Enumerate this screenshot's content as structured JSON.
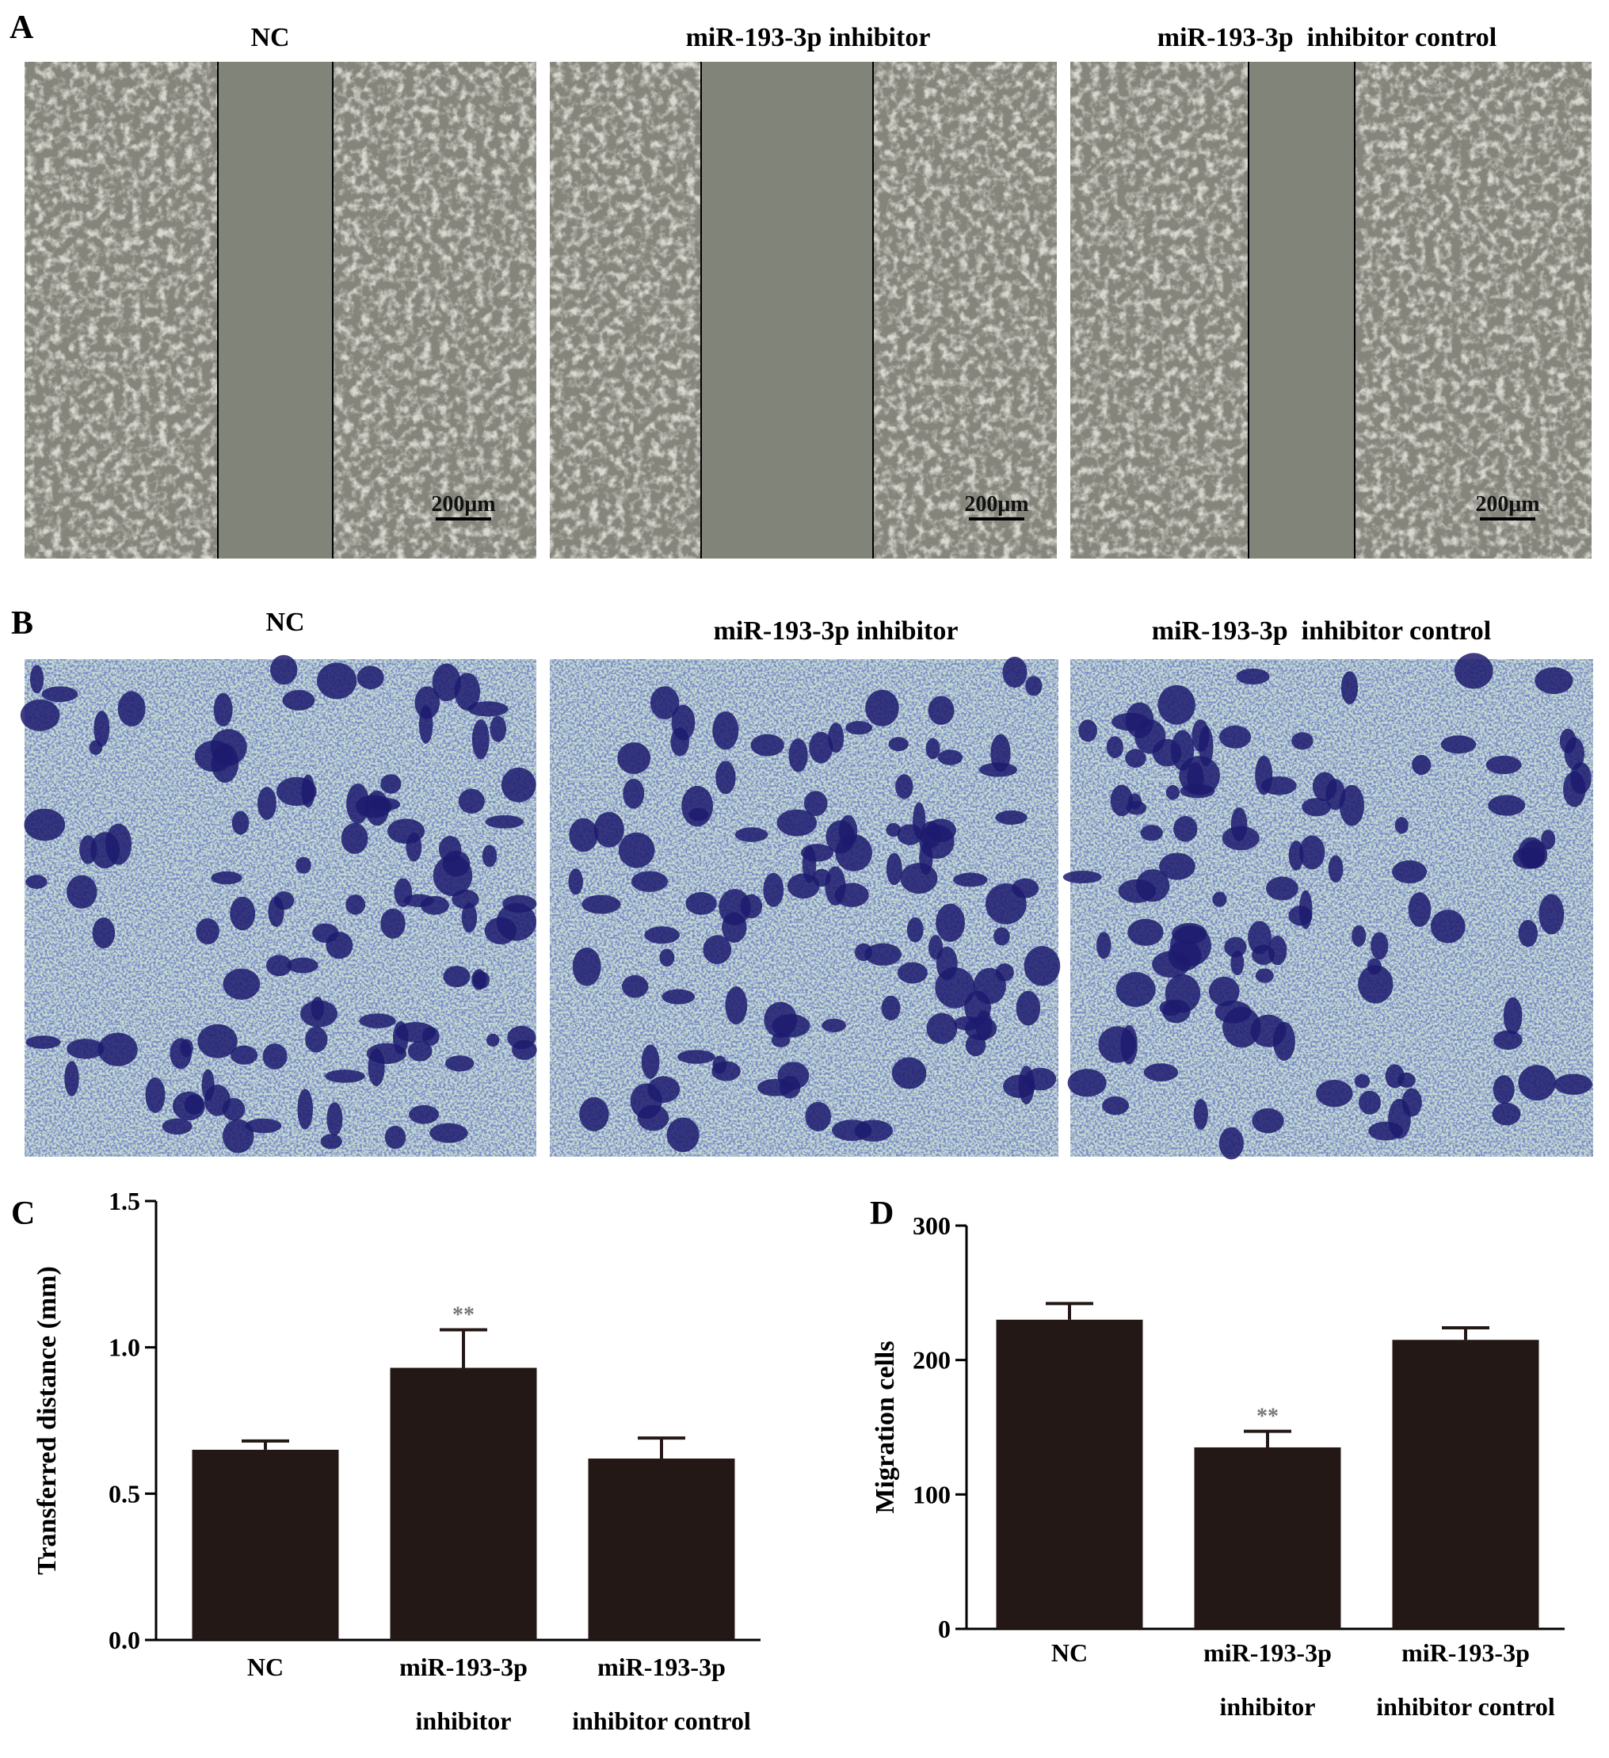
{
  "panels": [
    {
      "label": "A",
      "images": [
        {
          "title": "NC",
          "scale_bar": "200μm"
        },
        {
          "title": "miR-193-3p inhibitor",
          "scale_bar": "200μm"
        },
        {
          "title": "miR-193-3p  inhibitor control",
          "scale_bar": "200μm"
        }
      ]
    },
    {
      "label": "B",
      "images": [
        {
          "title": "NC"
        },
        {
          "title": "miR-193-3p inhibitor"
        },
        {
          "title": "miR-193-3p  inhibitor control"
        }
      ]
    }
  ],
  "chart_data": [
    {
      "type": "bar",
      "label": "C",
      "ylabel": "Transferred distance (mm)",
      "categories": [
        [
          "NC"
        ],
        [
          "miR-193-3p",
          "inhibitor"
        ],
        [
          "miR-193-3p",
          "inhibitor control"
        ]
      ],
      "values": [
        0.65,
        0.93,
        0.62
      ],
      "errors": [
        0.03,
        0.13,
        0.07
      ],
      "annotations": [
        null,
        "**",
        null
      ],
      "color": "#231816",
      "ylim": [
        0,
        1.5
      ],
      "yticks": [
        {
          "value": 0,
          "label": "0.0"
        },
        0.5,
        {
          "value": 1,
          "label": "1.0"
        },
        1.5
      ]
    },
    {
      "type": "bar",
      "label": "D",
      "ylabel": "Migration cells",
      "categories": [
        [
          "NC"
        ],
        [
          "miR-193-3p",
          "inhibitor"
        ],
        [
          "miR-193-3p",
          "inhibitor control"
        ]
      ],
      "values": [
        230,
        135,
        215
      ],
      "errors": [
        12,
        12,
        9
      ],
      "annotations": [
        null,
        "**",
        null
      ],
      "color": "#231816",
      "ylim": [
        0,
        300
      ],
      "yticks": [
        0,
        100,
        200,
        300
      ]
    }
  ]
}
